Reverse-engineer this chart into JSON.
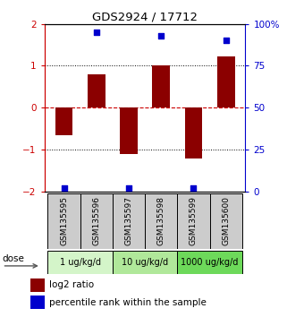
{
  "title": "GDS2924 / 17712",
  "samples": [
    "GSM135595",
    "GSM135596",
    "GSM135597",
    "GSM135598",
    "GSM135599",
    "GSM135600"
  ],
  "log2_ratio": [
    -0.65,
    0.8,
    -1.1,
    1.0,
    -1.2,
    1.22
  ],
  "percentile": [
    2,
    95,
    2,
    93,
    2,
    90
  ],
  "bar_color": "#8B0000",
  "dot_color": "#0000CD",
  "ylim_left": [
    -2,
    2
  ],
  "ylim_right": [
    0,
    100
  ],
  "yticks_left": [
    -2,
    -1,
    0,
    1,
    2
  ],
  "yticks_right": [
    0,
    25,
    50,
    75,
    100
  ],
  "yticklabels_right": [
    "0",
    "25",
    "50",
    "75",
    "100%"
  ],
  "dose_groups": [
    {
      "label": "1 ug/kg/d",
      "cols": [
        0,
        1
      ],
      "color": "#d4f5c9"
    },
    {
      "label": "10 ug/kg/d",
      "cols": [
        2,
        3
      ],
      "color": "#b0e89a"
    },
    {
      "label": "1000 ug/kg/d",
      "cols": [
        4,
        5
      ],
      "color": "#6dd95a"
    }
  ],
  "legend_bar_label": "log2 ratio",
  "legend_dot_label": "percentile rank within the sample",
  "dose_label": "dose",
  "zero_line_color": "#cc0000",
  "grid_line_color": "#000000"
}
